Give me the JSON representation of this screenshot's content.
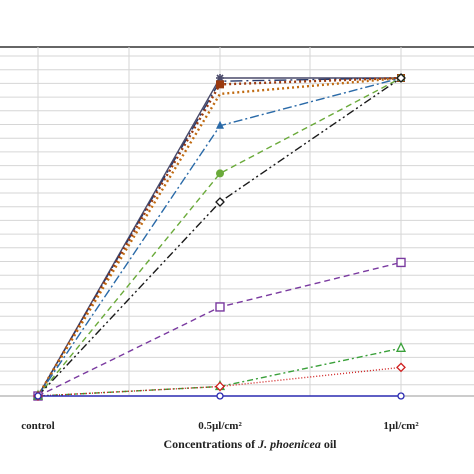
{
  "chart_data": {
    "type": "line",
    "categories": [
      "control",
      "0.5µl/cm²",
      "1µl/cm²"
    ],
    "xlabel": {
      "prefix": "Concentrations of ",
      "italic": "J. phoenicea",
      "suffix": " oil"
    },
    "ylim": [
      0,
      100
    ],
    "grid": true,
    "series": [
      {
        "values": [
          0,
          100,
          100
        ],
        "color": "#4a4a6a",
        "dash": "none",
        "marker": "asterisk"
      },
      {
        "values": [
          0,
          99,
          100
        ],
        "color": "#2a3a6a",
        "dash": "12,4,2,4",
        "marker": "none"
      },
      {
        "values": [
          0,
          98,
          100
        ],
        "color": "#9a3a10",
        "dash": "2,3",
        "marker": "square-filled"
      },
      {
        "values": [
          0,
          95,
          100
        ],
        "color": "#c06a10",
        "dash": "2,3",
        "marker": "none"
      },
      {
        "values": [
          0,
          85,
          100
        ],
        "color": "#2a6aa8",
        "dash": "9,3,2,3",
        "marker": "triangle-filled"
      },
      {
        "values": [
          0,
          70,
          100
        ],
        "color": "#6aaa3a",
        "dash": "6,4",
        "marker": "circle-filled"
      },
      {
        "values": [
          0,
          61,
          100
        ],
        "color": "#1a1a1a",
        "dash": "8,3,2,3,2,3",
        "marker": "diamond-open"
      },
      {
        "values": [
          0,
          28,
          42
        ],
        "color": "#7a3aa0",
        "dash": "6,4",
        "marker": "square-open"
      },
      {
        "values": [
          0,
          3,
          15
        ],
        "color": "#3aa03a",
        "dash": "6,3,2,3",
        "marker": "triangle-open"
      },
      {
        "values": [
          0,
          3,
          9
        ],
        "color": "#d02020",
        "dash": "1,2",
        "marker": "diamond-open"
      },
      {
        "values": [
          0,
          0,
          0
        ],
        "color": "#2a2ab0",
        "dash": "none",
        "marker": "circle-open"
      }
    ]
  }
}
